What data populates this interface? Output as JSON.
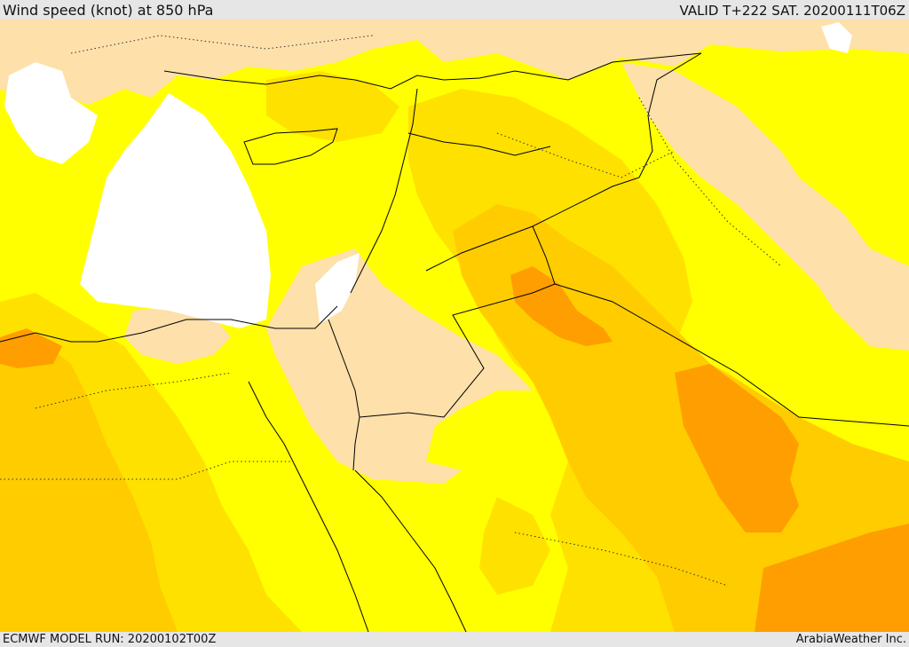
{
  "header": {
    "title": "Wind speed (knot) at 850 hPa",
    "valid": "VALID T+222 SAT. 20200111T06Z"
  },
  "footer": {
    "model_run": "ECMWF MODEL RUN: 20200102T00Z",
    "credit": "ArabiaWeather Inc."
  },
  "map_colors": {
    "calm": "#ffffff",
    "light": "#fde0aa",
    "moderate": "#ffff00",
    "fresh": "#ffe100",
    "strong": "#ffcc00",
    "very_strong": "#ff9e00",
    "border": "#000000"
  }
}
